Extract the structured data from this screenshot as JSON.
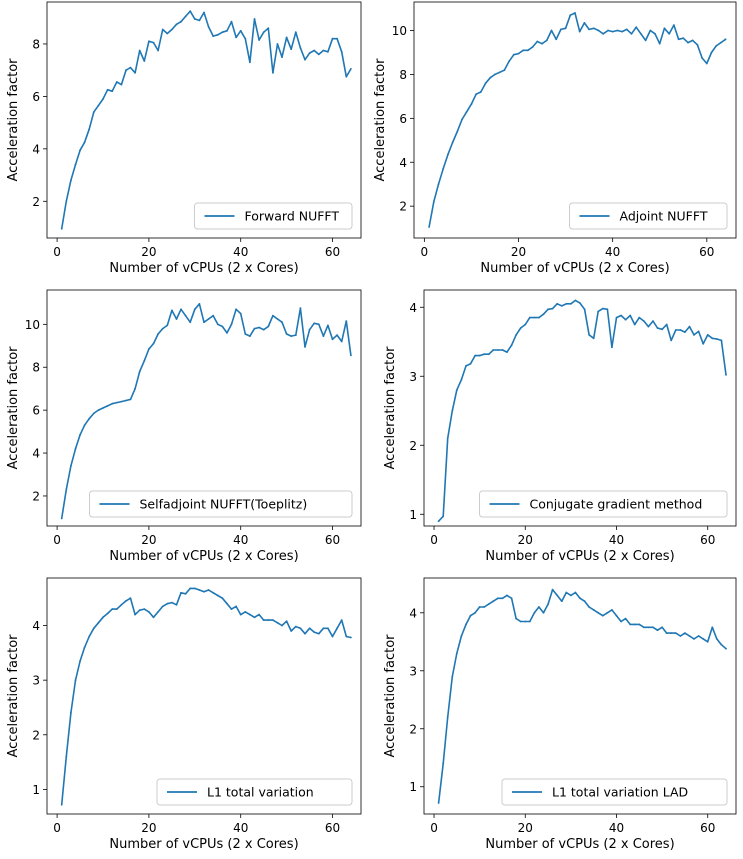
{
  "chart_data": [
    {
      "type": "line",
      "xlabel": "Number of vCPUs (2 x Cores)",
      "ylabel": "Acceleration factor",
      "xlim": [
        -2.2,
        66.2
      ],
      "ylim": [
        0.6,
        9.6
      ],
      "xticks": [
        0,
        20,
        40,
        60
      ],
      "yticks": [
        2,
        4,
        6,
        8
      ],
      "legend_position": "lower-right",
      "series": [
        {
          "name": "Forward NUFFT",
          "color": "#1f77b4",
          "x": [
            1,
            2,
            3,
            4,
            5,
            6,
            7,
            8,
            9,
            10,
            11,
            12,
            13,
            14,
            15,
            16,
            17,
            18,
            19,
            20,
            21,
            22,
            23,
            24,
            25,
            26,
            27,
            28,
            29,
            30,
            31,
            32,
            33,
            34,
            35,
            36,
            37,
            38,
            39,
            40,
            41,
            42,
            43,
            44,
            45,
            46,
            47,
            48,
            49,
            50,
            51,
            52,
            53,
            54,
            55,
            56,
            57,
            58,
            59,
            60,
            61,
            62,
            63,
            64
          ],
          "y": [
            0.95,
            2.0,
            2.8,
            3.4,
            3.95,
            4.25,
            4.75,
            5.4,
            5.65,
            5.9,
            6.25,
            6.2,
            6.55,
            6.45,
            7.0,
            7.1,
            6.9,
            7.75,
            7.35,
            8.1,
            8.05,
            7.75,
            8.55,
            8.4,
            8.55,
            8.75,
            8.85,
            9.05,
            9.25,
            8.95,
            8.9,
            9.2,
            8.65,
            8.3,
            8.35,
            8.45,
            8.5,
            8.85,
            8.25,
            8.5,
            8.2,
            7.3,
            8.95,
            8.15,
            8.45,
            8.6,
            6.9,
            8.0,
            7.5,
            8.25,
            7.8,
            8.45,
            7.85,
            7.4,
            7.65,
            7.75,
            7.6,
            7.75,
            7.7,
            8.2,
            8.2,
            7.7,
            6.75,
            7.05
          ]
        }
      ]
    },
    {
      "type": "line",
      "xlabel": "Number of vCPUs (2 x Cores)",
      "ylabel": "Acceleration factor",
      "xlim": [
        -2.2,
        66.2
      ],
      "ylim": [
        0.55,
        11.3
      ],
      "xticks": [
        0,
        20,
        40,
        60
      ],
      "yticks": [
        2,
        4,
        6,
        8,
        10
      ],
      "legend_position": "lower-right",
      "series": [
        {
          "name": "Adjoint NUFFT",
          "color": "#1f77b4",
          "x": [
            1,
            2,
            3,
            4,
            5,
            6,
            7,
            8,
            9,
            10,
            11,
            12,
            13,
            14,
            15,
            16,
            17,
            18,
            19,
            20,
            21,
            22,
            23,
            24,
            25,
            26,
            27,
            28,
            29,
            30,
            31,
            32,
            33,
            34,
            35,
            36,
            37,
            38,
            39,
            40,
            41,
            42,
            43,
            44,
            45,
            46,
            47,
            48,
            49,
            50,
            51,
            52,
            53,
            54,
            55,
            56,
            57,
            58,
            59,
            60,
            61,
            62,
            63,
            64
          ],
          "y": [
            1.05,
            2.2,
            3.0,
            3.7,
            4.35,
            4.9,
            5.4,
            5.95,
            6.3,
            6.65,
            7.1,
            7.2,
            7.6,
            7.85,
            8.0,
            8.1,
            8.2,
            8.6,
            8.9,
            8.95,
            9.1,
            9.1,
            9.25,
            9.5,
            9.4,
            9.55,
            10.0,
            9.6,
            10.05,
            10.1,
            10.7,
            10.8,
            9.95,
            10.35,
            10.05,
            10.1,
            10.0,
            9.85,
            10.0,
            9.95,
            10.0,
            9.95,
            10.05,
            9.85,
            10.15,
            9.85,
            9.55,
            10.0,
            9.85,
            9.4,
            10.1,
            9.85,
            10.25,
            9.6,
            9.65,
            9.45,
            9.55,
            9.35,
            8.75,
            8.5,
            9.0,
            9.3,
            9.45,
            9.6
          ]
        }
      ]
    },
    {
      "type": "line",
      "xlabel": "Number of vCPUs (2 x Cores)",
      "ylabel": "Acceleration factor",
      "xlim": [
        -2.2,
        66.2
      ],
      "ylim": [
        0.6,
        11.6
      ],
      "xticks": [
        0,
        20,
        40,
        60
      ],
      "yticks": [
        2,
        4,
        6,
        8,
        10
      ],
      "legend_position": "lower-right",
      "series": [
        {
          "name": "Selfadjoint NUFFT(Toeplitz)",
          "color": "#1f77b4",
          "x": [
            1,
            2,
            3,
            4,
            5,
            6,
            7,
            8,
            9,
            10,
            11,
            12,
            13,
            14,
            15,
            16,
            17,
            18,
            19,
            20,
            21,
            22,
            23,
            24,
            25,
            26,
            27,
            28,
            29,
            30,
            31,
            32,
            33,
            34,
            35,
            36,
            37,
            38,
            39,
            40,
            41,
            42,
            43,
            44,
            45,
            46,
            47,
            48,
            49,
            50,
            51,
            52,
            53,
            54,
            55,
            56,
            57,
            58,
            59,
            60,
            61,
            62,
            63,
            64
          ],
          "y": [
            0.95,
            2.3,
            3.4,
            4.2,
            4.85,
            5.3,
            5.6,
            5.85,
            6.0,
            6.1,
            6.2,
            6.3,
            6.35,
            6.4,
            6.45,
            6.5,
            7.0,
            7.8,
            8.3,
            8.85,
            9.1,
            9.55,
            9.8,
            9.95,
            10.65,
            10.25,
            10.7,
            10.4,
            10.1,
            10.7,
            10.95,
            10.1,
            10.25,
            10.4,
            10.0,
            9.9,
            9.6,
            10.0,
            10.7,
            10.5,
            9.55,
            9.45,
            9.8,
            9.85,
            9.75,
            9.9,
            10.4,
            10.25,
            10.1,
            9.55,
            9.45,
            9.5,
            10.75,
            8.95,
            9.75,
            10.05,
            10.0,
            9.45,
            9.95,
            9.3,
            9.5,
            9.2,
            10.15,
            8.55
          ]
        }
      ]
    },
    {
      "type": "line",
      "xlabel": "Number of vCPUs (2 x Cores)",
      "ylabel": "Acceleration factor",
      "xlim": [
        -2.2,
        66.2
      ],
      "ylim": [
        0.83,
        4.25
      ],
      "xticks": [
        0,
        20,
        40,
        60
      ],
      "yticks": [
        1,
        2,
        3,
        4
      ],
      "legend_position": "lower-right",
      "series": [
        {
          "name": "Conjugate gradient method",
          "color": "#1f77b4",
          "x": [
            1,
            2,
            3,
            4,
            5,
            6,
            7,
            8,
            9,
            10,
            11,
            12,
            13,
            14,
            15,
            16,
            17,
            18,
            19,
            20,
            21,
            22,
            23,
            24,
            25,
            26,
            27,
            28,
            29,
            30,
            31,
            32,
            33,
            34,
            35,
            36,
            37,
            38,
            39,
            40,
            41,
            42,
            43,
            44,
            45,
            46,
            47,
            48,
            49,
            50,
            51,
            52,
            53,
            54,
            55,
            56,
            57,
            58,
            59,
            60,
            61,
            62,
            63,
            64
          ],
          "y": [
            0.9,
            0.97,
            2.1,
            2.5,
            2.8,
            2.95,
            3.15,
            3.18,
            3.3,
            3.3,
            3.32,
            3.32,
            3.38,
            3.38,
            3.38,
            3.35,
            3.45,
            3.6,
            3.7,
            3.75,
            3.85,
            3.85,
            3.85,
            3.9,
            3.97,
            3.98,
            4.05,
            4.02,
            4.05,
            4.05,
            4.1,
            4.06,
            3.97,
            3.6,
            3.55,
            3.94,
            3.98,
            3.97,
            3.42,
            3.85,
            3.88,
            3.82,
            3.88,
            3.75,
            3.85,
            3.8,
            3.72,
            3.8,
            3.7,
            3.68,
            3.75,
            3.52,
            3.67,
            3.67,
            3.64,
            3.72,
            3.6,
            3.65,
            3.47,
            3.6,
            3.55,
            3.54,
            3.52,
            3.02
          ]
        }
      ]
    },
    {
      "type": "line",
      "xlabel": "Number of vCPUs (2 x Cores)",
      "ylabel": "Acceleration factor",
      "xlim": [
        -2.2,
        66.2
      ],
      "ylim": [
        0.55,
        4.87
      ],
      "xticks": [
        0,
        20,
        40,
        60
      ],
      "yticks": [
        1,
        2,
        3,
        4
      ],
      "legend_position": "lower-right",
      "series": [
        {
          "name": "L1 total variation",
          "color": "#1f77b4",
          "x": [
            1,
            2,
            3,
            4,
            5,
            6,
            7,
            8,
            9,
            10,
            11,
            12,
            13,
            14,
            15,
            16,
            17,
            18,
            19,
            20,
            21,
            22,
            23,
            24,
            25,
            26,
            27,
            28,
            29,
            30,
            31,
            32,
            33,
            34,
            35,
            36,
            37,
            38,
            39,
            40,
            41,
            42,
            43,
            44,
            45,
            46,
            47,
            48,
            49,
            50,
            51,
            52,
            53,
            54,
            55,
            56,
            57,
            58,
            59,
            60,
            61,
            62,
            63,
            64
          ],
          "y": [
            0.72,
            1.6,
            2.4,
            3.0,
            3.35,
            3.6,
            3.8,
            3.95,
            4.05,
            4.15,
            4.22,
            4.3,
            4.3,
            4.38,
            4.45,
            4.5,
            4.2,
            4.28,
            4.3,
            4.25,
            4.15,
            4.25,
            4.35,
            4.4,
            4.42,
            4.38,
            4.6,
            4.58,
            4.68,
            4.68,
            4.65,
            4.62,
            4.65,
            4.6,
            4.55,
            4.5,
            4.4,
            4.3,
            4.35,
            4.2,
            4.25,
            4.2,
            4.15,
            4.2,
            4.1,
            4.1,
            4.1,
            4.05,
            4.0,
            4.08,
            3.9,
            3.98,
            3.95,
            3.85,
            3.95,
            3.88,
            3.85,
            3.95,
            3.95,
            3.8,
            3.95,
            4.1,
            3.8,
            3.78
          ]
        }
      ]
    },
    {
      "type": "line",
      "xlabel": "Number of vCPUs (2 x Cores)",
      "ylabel": "Acceleration factor",
      "xlim": [
        -2.2,
        66.2
      ],
      "ylim": [
        0.53,
        4.6
      ],
      "xticks": [
        0,
        20,
        40,
        60
      ],
      "yticks": [
        1,
        2,
        3,
        4
      ],
      "legend_position": "lower-right",
      "series": [
        {
          "name": "L1 total variation LAD",
          "color": "#1f77b4",
          "x": [
            1,
            2,
            3,
            4,
            5,
            6,
            7,
            8,
            9,
            10,
            11,
            12,
            13,
            14,
            15,
            16,
            17,
            18,
            19,
            20,
            21,
            22,
            23,
            24,
            25,
            26,
            27,
            28,
            29,
            30,
            31,
            32,
            33,
            34,
            35,
            36,
            37,
            38,
            39,
            40,
            41,
            42,
            43,
            44,
            45,
            46,
            47,
            48,
            49,
            50,
            51,
            52,
            53,
            54,
            55,
            56,
            57,
            58,
            59,
            60,
            61,
            62,
            63,
            64
          ],
          "y": [
            0.72,
            1.4,
            2.2,
            2.9,
            3.3,
            3.6,
            3.8,
            3.95,
            4.0,
            4.1,
            4.1,
            4.15,
            4.2,
            4.25,
            4.25,
            4.3,
            4.25,
            3.9,
            3.85,
            3.85,
            3.85,
            4.0,
            4.1,
            4.0,
            4.15,
            4.4,
            4.3,
            4.2,
            4.35,
            4.3,
            4.35,
            4.25,
            4.2,
            4.1,
            4.05,
            4.0,
            3.95,
            4.0,
            4.05,
            3.95,
            3.85,
            3.9,
            3.8,
            3.8,
            3.8,
            3.75,
            3.75,
            3.75,
            3.7,
            3.75,
            3.65,
            3.65,
            3.65,
            3.6,
            3.65,
            3.6,
            3.55,
            3.6,
            3.55,
            3.5,
            3.75,
            3.55,
            3.45,
            3.38
          ]
        }
      ]
    }
  ]
}
